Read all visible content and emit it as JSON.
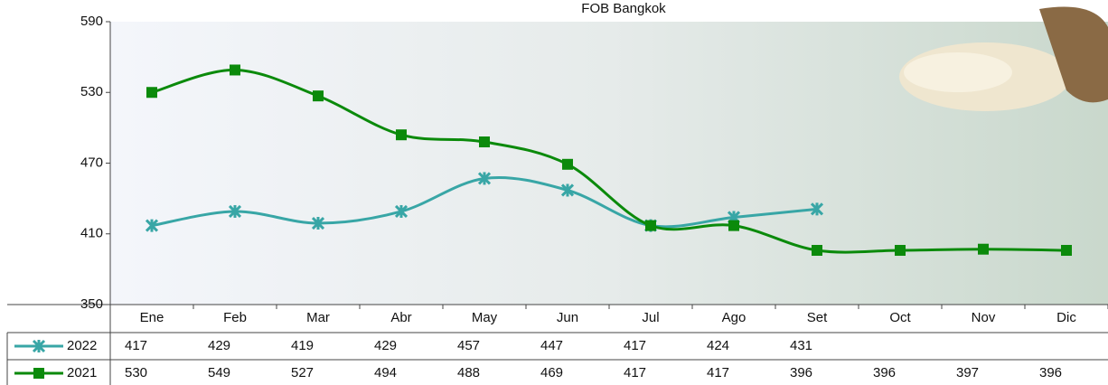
{
  "chart_data": {
    "type": "line",
    "title": "FOB Bangkok",
    "categories": [
      "Ene",
      "Feb",
      "Mar",
      "Abr",
      "May",
      "Jun",
      "Jul",
      "Ago",
      "Set",
      "Oct",
      "Nov",
      "Dic"
    ],
    "series": [
      {
        "name": "2022",
        "color": "#38a6a6",
        "marker": "x",
        "values": [
          417,
          429,
          419,
          429,
          457,
          447,
          417,
          424,
          431,
          null,
          null,
          null
        ]
      },
      {
        "name": "2021",
        "color": "#0b8a0b",
        "marker": "square",
        "values": [
          530,
          549,
          527,
          494,
          488,
          469,
          417,
          417,
          396,
          396,
          397,
          396
        ]
      }
    ],
    "ylim": [
      350,
      590
    ],
    "yticks": [
      350,
      410,
      470,
      530,
      590
    ],
    "grid": false
  }
}
